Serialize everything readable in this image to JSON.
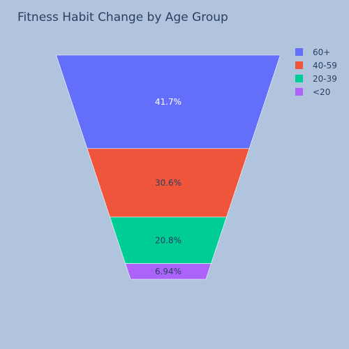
{
  "chart_data": {
    "type": "funnelarea",
    "title": "Fitness Habit Change by Age Group",
    "categories": [
      "60+",
      "40-59",
      "20-39",
      "<20"
    ],
    "values": [
      41.7,
      30.6,
      20.8,
      6.94
    ],
    "labels": [
      "41.7%",
      "30.6%",
      "20.8%",
      "6.94%"
    ],
    "colors": [
      "#636efa",
      "#ef553b",
      "#00cc96",
      "#ab63fa"
    ],
    "label_colors": [
      "#ffffff",
      "#2a3f5f",
      "#2a3f5f",
      "#2a3f5f"
    ],
    "legend": {
      "placement": "top-right",
      "items": [
        "60+",
        "40-59",
        "20-39",
        "<20"
      ]
    }
  }
}
